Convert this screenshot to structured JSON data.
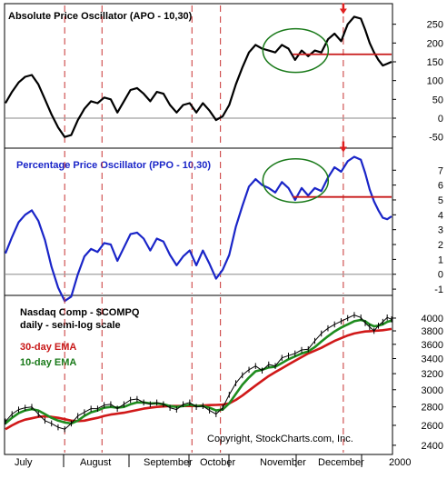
{
  "colors": {
    "background": "#ffffff",
    "frame": "#000000",
    "zero_line": "#a0a0a0",
    "vline": "#c83232",
    "apo": "#000000",
    "ppo": "#1a25c8",
    "ema30": "#d01818",
    "ema10": "#1e8c1e",
    "price_bars": "#000000",
    "ellipse": "#1a7a1a",
    "hline": "#c81818",
    "arrow": "#e02020",
    "ppo_title": "#1a25c8",
    "legend30": "#c81818",
    "legend10": "#1a7a1a"
  },
  "month_labels": [
    "July",
    "August",
    "September",
    "October",
    "November",
    "December",
    "2000"
  ],
  "copyright": "Copyright, StockCharts.com, Inc.",
  "chart_data": [
    {
      "type": "line",
      "title": "Absolute Price Oscillator (APO - 10,30)",
      "ylim": [
        -75,
        300
      ],
      "yticks": [
        250,
        200,
        150,
        100,
        50,
        0,
        -50
      ],
      "zero_line": 0,
      "x": [
        0,
        3,
        6,
        9,
        12,
        15,
        18,
        21,
        24,
        27,
        30,
        33,
        36,
        39,
        42,
        45,
        48,
        51,
        54,
        57,
        60,
        63,
        66,
        69,
        72,
        75,
        78,
        81,
        84,
        87,
        90,
        93,
        96,
        99,
        102,
        105,
        108,
        111,
        114,
        117,
        120,
        123,
        126,
        129,
        132,
        135,
        138,
        141,
        144,
        147,
        150,
        153,
        156,
        159,
        162,
        164,
        166,
        168,
        170,
        172,
        174,
        176
      ],
      "series": [
        {
          "values": [
            40,
            70,
            95,
            110,
            115,
            90,
            50,
            10,
            -25,
            -50,
            -45,
            -5,
            25,
            45,
            40,
            55,
            50,
            15,
            45,
            75,
            80,
            65,
            45,
            70,
            65,
            35,
            15,
            35,
            40,
            15,
            40,
            20,
            -5,
            5,
            35,
            90,
            135,
            175,
            195,
            185,
            180,
            175,
            195,
            185,
            155,
            180,
            165,
            180,
            175,
            210,
            225,
            205,
            250,
            270,
            265,
            235,
            200,
            175,
            155,
            140,
            145,
            150
          ]
        }
      ],
      "vlines": [
        27,
        44,
        85,
        98,
        154
      ],
      "hline": {
        "y": 170,
        "x_range": [
          131,
          176
        ]
      },
      "ellipse_center": [
        131,
        180
      ],
      "arrow_at": [
        154,
        265
      ]
    },
    {
      "type": "line",
      "title": "Percentage Price Oscillator (PPO - 10,30)",
      "ylim": [
        -1.3,
        8.3
      ],
      "yticks": [
        7,
        6,
        5,
        4,
        3,
        2,
        1,
        0,
        -1
      ],
      "zero_line": 0,
      "x": [
        0,
        3,
        6,
        9,
        12,
        15,
        18,
        21,
        24,
        27,
        30,
        33,
        36,
        39,
        42,
        45,
        48,
        51,
        54,
        57,
        60,
        63,
        66,
        69,
        72,
        75,
        78,
        81,
        84,
        87,
        90,
        93,
        96,
        99,
        102,
        105,
        108,
        111,
        114,
        117,
        120,
        123,
        126,
        129,
        132,
        135,
        138,
        141,
        144,
        147,
        150,
        153,
        156,
        159,
        162,
        164,
        166,
        168,
        170,
        172,
        174,
        176
      ],
      "series": [
        {
          "values": [
            1.4,
            2.5,
            3.5,
            4.0,
            4.3,
            3.6,
            2.3,
            0.5,
            -0.9,
            -1.8,
            -1.5,
            0.0,
            1.2,
            1.7,
            1.5,
            2.1,
            2.0,
            0.9,
            1.8,
            2.7,
            2.8,
            2.4,
            1.6,
            2.4,
            2.2,
            1.3,
            0.6,
            1.2,
            1.6,
            0.6,
            1.6,
            0.7,
            -0.3,
            0.3,
            1.3,
            3.2,
            4.6,
            5.9,
            6.4,
            6.0,
            5.8,
            5.5,
            6.2,
            5.8,
            5.0,
            5.8,
            5.3,
            5.8,
            5.6,
            6.5,
            7.2,
            6.9,
            7.6,
            7.9,
            7.7,
            6.8,
            5.7,
            4.9,
            4.3,
            3.8,
            3.7,
            3.9
          ]
        }
      ],
      "vlines": [
        27,
        44,
        85,
        98,
        154
      ],
      "hline": {
        "y": 5.2,
        "x_range": [
          131,
          176
        ]
      },
      "ellipse_center": [
        131,
        6.3
      ],
      "arrow_at": [
        154,
        7.9
      ]
    },
    {
      "type": "line",
      "title": "Nasdaq Comp - $COMPQ",
      "subtitle": "daily - semi-log scale",
      "scale": "log",
      "ylim": [
        2330,
        4350
      ],
      "yticks": [
        4000,
        3800,
        3600,
        3400,
        3200,
        3000,
        2800,
        2600,
        2400
      ],
      "x": [
        0,
        3,
        6,
        9,
        12,
        15,
        18,
        21,
        24,
        27,
        30,
        33,
        36,
        39,
        42,
        45,
        48,
        51,
        54,
        57,
        60,
        63,
        66,
        69,
        72,
        75,
        78,
        81,
        84,
        87,
        90,
        93,
        96,
        99,
        102,
        105,
        108,
        111,
        114,
        117,
        120,
        123,
        126,
        129,
        132,
        135,
        138,
        141,
        144,
        147,
        150,
        153,
        156,
        159,
        162,
        164,
        166,
        168,
        170,
        172,
        174,
        176
      ],
      "series": [
        {
          "name": "30-day EMA",
          "values": [
            2560,
            2600,
            2635,
            2660,
            2675,
            2690,
            2695,
            2690,
            2680,
            2665,
            2650,
            2645,
            2650,
            2665,
            2680,
            2700,
            2715,
            2725,
            2735,
            2750,
            2765,
            2780,
            2790,
            2800,
            2805,
            2810,
            2810,
            2810,
            2810,
            2810,
            2815,
            2820,
            2822,
            2825,
            2840,
            2880,
            2930,
            2990,
            3050,
            3110,
            3170,
            3220,
            3270,
            3320,
            3370,
            3420,
            3470,
            3510,
            3550,
            3600,
            3650,
            3690,
            3730,
            3760,
            3780,
            3790,
            3795,
            3800,
            3805,
            3810,
            3820,
            3830
          ]
        },
        {
          "name": "10-day EMA",
          "values": [
            2620,
            2680,
            2730,
            2760,
            2775,
            2760,
            2720,
            2680,
            2650,
            2630,
            2620,
            2650,
            2700,
            2740,
            2760,
            2790,
            2800,
            2790,
            2800,
            2830,
            2850,
            2850,
            2840,
            2840,
            2830,
            2810,
            2800,
            2810,
            2825,
            2810,
            2810,
            2790,
            2760,
            2770,
            2840,
            2950,
            3060,
            3150,
            3230,
            3250,
            3280,
            3290,
            3340,
            3390,
            3430,
            3470,
            3500,
            3560,
            3640,
            3720,
            3790,
            3850,
            3900,
            3950,
            3970,
            3950,
            3900,
            3870,
            3880,
            3900,
            3940,
            3960
          ]
        },
        {
          "name": "$COMPQ",
          "values": [
            2640,
            2720,
            2770,
            2790,
            2800,
            2720,
            2650,
            2620,
            2580,
            2560,
            2620,
            2700,
            2740,
            2780,
            2780,
            2820,
            2830,
            2780,
            2830,
            2880,
            2890,
            2850,
            2830,
            2850,
            2830,
            2790,
            2770,
            2830,
            2850,
            2800,
            2810,
            2760,
            2720,
            2790,
            2940,
            3080,
            3180,
            3250,
            3300,
            3240,
            3320,
            3300,
            3410,
            3440,
            3470,
            3520,
            3530,
            3650,
            3760,
            3840,
            3900,
            3950,
            4000,
            4050,
            4010,
            3920,
            3860,
            3800,
            3880,
            3940,
            4010,
            3980
          ]
        }
      ],
      "vlines": [
        27,
        44,
        85,
        98,
        154
      ]
    }
  ]
}
